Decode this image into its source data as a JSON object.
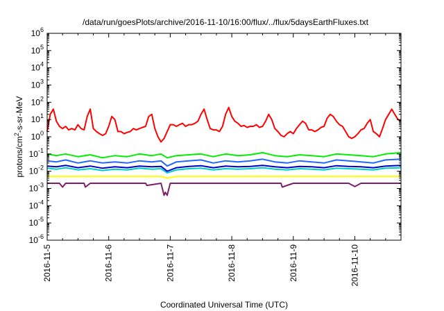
{
  "chart_data": {
    "type": "line",
    "title": "/data/run/goesPlots/archive/2016-11-10/16:00/flux/../flux/5daysEarthFluxes.txt",
    "xlabel": "Coordinated Universal Time (UTC)",
    "ylabel": "protons/cm2-s-sr-MeV",
    "yscale": "log",
    "ylim_exponent": [
      -6,
      6
    ],
    "y_tick_labels": [
      "10-6",
      "10-5",
      "10-4",
      "10-3",
      "10-2",
      "10-1",
      "100",
      "101",
      "102",
      "103",
      "104",
      "105",
      "106"
    ],
    "xlim_days": [
      0,
      5.75
    ],
    "x_ticks": [
      {
        "day": 0,
        "label": "2016-11-5"
      },
      {
        "day": 1,
        "label": "2016-11-6"
      },
      {
        "day": 2,
        "label": "2016-11-7"
      },
      {
        "day": 3,
        "label": "2016-11-8"
      },
      {
        "day": 4,
        "label": "2016-11-9"
      },
      {
        "day": 5,
        "label": "2016-11-10"
      }
    ],
    "grid": false,
    "legend": "none",
    "series": [
      {
        "color": "#ff0000",
        "x": [
          0,
          0.05,
          0.1,
          0.15,
          0.2,
          0.25,
          0.3,
          0.35,
          0.4,
          0.45,
          0.5,
          0.55,
          0.6,
          0.65,
          0.7,
          0.75,
          0.8,
          0.85,
          0.9,
          0.95,
          1.0,
          1.05,
          1.1,
          1.15,
          1.2,
          1.25,
          1.3,
          1.35,
          1.4,
          1.45,
          1.5,
          1.55,
          1.6,
          1.65,
          1.7,
          1.75,
          1.8,
          1.85,
          1.9,
          1.95,
          2.0,
          2.05,
          2.1,
          2.15,
          2.2,
          2.25,
          2.3,
          2.35,
          2.4,
          2.45,
          2.5,
          2.55,
          2.6,
          2.65,
          2.7,
          2.75,
          2.8,
          2.85,
          2.9,
          2.95,
          3.0,
          3.05,
          3.1,
          3.15,
          3.2,
          3.25,
          3.3,
          3.35,
          3.4,
          3.45,
          3.5,
          3.55,
          3.6,
          3.65,
          3.7,
          3.75,
          3.8,
          3.85,
          3.9,
          3.95,
          4.0,
          4.05,
          4.1,
          4.15,
          4.2,
          4.25,
          4.3,
          4.35,
          4.4,
          4.45,
          4.5,
          4.55,
          4.6,
          4.65,
          4.7,
          4.75,
          4.8,
          4.85,
          4.9,
          4.95,
          5.0,
          5.05,
          5.1,
          5.15,
          5.2,
          5.25,
          5.3,
          5.35,
          5.4,
          5.45,
          5.5,
          5.55,
          5.6,
          5.65,
          5.7,
          5.75
        ],
        "values": [
          2,
          20,
          40,
          8,
          4,
          3,
          4,
          2.5,
          3,
          2.5,
          5,
          3,
          2.5,
          15,
          40,
          3,
          2,
          1.5,
          1.2,
          1.5,
          4,
          15,
          10,
          2,
          2,
          1.5,
          1.8,
          2,
          3,
          2.5,
          3,
          3.5,
          4,
          15,
          20,
          3,
          1,
          0.5,
          0.8,
          2,
          5,
          5,
          4,
          5,
          6,
          4,
          5,
          5,
          6,
          8,
          20,
          40,
          10,
          3,
          2.5,
          2.5,
          2,
          4,
          20,
          50,
          15,
          8,
          6,
          4,
          4.5,
          3.5,
          4,
          4,
          5,
          3.5,
          4,
          8,
          20,
          10,
          3,
          2,
          1.2,
          1,
          1.5,
          2,
          1.5,
          3,
          5,
          8,
          6,
          2.5,
          2.5,
          2,
          2.5,
          3.5,
          4,
          12,
          20,
          15,
          8,
          5,
          4,
          2,
          1,
          0.8,
          1,
          1.5,
          2.5,
          3,
          6,
          10,
          2,
          1.5,
          1,
          3,
          10,
          20,
          40,
          20,
          10,
          8
        ]
      },
      {
        "color": "#00ee00",
        "x": [
          0,
          0.15,
          0.3,
          0.5,
          0.7,
          0.9,
          1.1,
          1.3,
          1.5,
          1.7,
          1.85,
          1.95,
          2.1,
          2.3,
          2.5,
          2.7,
          2.9,
          3.1,
          3.3,
          3.5,
          3.7,
          3.9,
          4.1,
          4.3,
          4.5,
          4.7,
          4.9,
          5.1,
          5.3,
          5.5,
          5.75
        ],
        "values": [
          0.1,
          0.08,
          0.1,
          0.07,
          0.09,
          0.06,
          0.08,
          0.07,
          0.1,
          0.08,
          0.1,
          0.06,
          0.08,
          0.09,
          0.1,
          0.07,
          0.1,
          0.08,
          0.09,
          0.12,
          0.08,
          0.07,
          0.09,
          0.08,
          0.07,
          0.1,
          0.09,
          0.08,
          0.07,
          0.1,
          0.12
        ]
      },
      {
        "color": "#2266ff",
        "x": [
          0,
          0.15,
          0.3,
          0.5,
          0.7,
          0.9,
          1.1,
          1.3,
          1.5,
          1.7,
          1.85,
          1.95,
          2.1,
          2.3,
          2.5,
          2.7,
          2.9,
          3.1,
          3.3,
          3.5,
          3.7,
          3.9,
          4.1,
          4.3,
          4.5,
          4.7,
          4.9,
          5.1,
          5.3,
          5.5,
          5.75
        ],
        "values": [
          0.04,
          0.035,
          0.045,
          0.03,
          0.04,
          0.03,
          0.035,
          0.03,
          0.04,
          0.035,
          0.04,
          0.02,
          0.035,
          0.04,
          0.045,
          0.03,
          0.04,
          0.035,
          0.04,
          0.05,
          0.035,
          0.03,
          0.04,
          0.035,
          0.03,
          0.045,
          0.04,
          0.035,
          0.03,
          0.045,
          0.05
        ]
      },
      {
        "color": "#00cccc",
        "x": [
          0,
          0.15,
          0.3,
          0.5,
          0.7,
          0.9,
          1.1,
          1.3,
          1.5,
          1.7,
          1.85,
          1.95,
          2.1,
          2.3,
          2.5,
          2.7,
          2.9,
          3.1,
          3.3,
          3.5,
          3.7,
          3.9,
          4.1,
          4.3,
          4.5,
          4.7,
          4.9,
          5.1,
          5.3,
          5.5,
          5.75
        ],
        "values": [
          0.015,
          0.013,
          0.016,
          0.012,
          0.014,
          0.011,
          0.013,
          0.012,
          0.015,
          0.013,
          0.014,
          0.008,
          0.012,
          0.014,
          0.015,
          0.012,
          0.014,
          0.013,
          0.014,
          0.016,
          0.013,
          0.012,
          0.014,
          0.013,
          0.012,
          0.015,
          0.014,
          0.013,
          0.012,
          0.015,
          0.016
        ]
      },
      {
        "color": "#0000cc",
        "x": [
          0,
          0.15,
          0.3,
          0.5,
          0.7,
          0.9,
          1.1,
          1.3,
          1.5,
          1.7,
          1.85,
          1.95,
          2.1,
          2.3,
          2.5,
          2.7,
          2.9,
          3.1,
          3.3,
          3.5,
          3.7,
          3.9,
          4.1,
          4.3,
          4.5,
          4.7,
          4.9,
          5.1,
          5.3,
          5.5,
          5.75
        ],
        "values": [
          0.02,
          0.018,
          0.022,
          0.016,
          0.02,
          0.015,
          0.018,
          0.016,
          0.02,
          0.018,
          0.019,
          0.01,
          0.016,
          0.019,
          0.021,
          0.016,
          0.02,
          0.018,
          0.019,
          0.022,
          0.018,
          0.016,
          0.019,
          0.018,
          0.016,
          0.021,
          0.019,
          0.018,
          0.016,
          0.02,
          0.022
        ]
      },
      {
        "color": "#ffff00",
        "x": [
          0,
          0.5,
          1.0,
          1.5,
          1.85,
          1.95,
          2.1,
          2.5,
          3.0,
          3.5,
          4.0,
          4.5,
          5.0,
          5.5,
          5.75
        ],
        "values": [
          0.005,
          0.005,
          0.005,
          0.005,
          0.005,
          0.004,
          0.005,
          0.005,
          0.005,
          0.005,
          0.005,
          0.005,
          0.005,
          0.005,
          0.005
        ]
      },
      {
        "color": "#7b1f6b",
        "x": [
          0,
          0.2,
          0.25,
          0.3,
          0.5,
          0.6,
          0.62,
          0.7,
          1.0,
          1.2,
          1.5,
          1.6,
          1.62,
          1.85,
          1.9,
          1.92,
          1.95,
          2.0,
          2.1,
          2.5,
          3.0,
          3.5,
          3.8,
          3.82,
          4.0,
          4.5,
          4.9,
          5.0,
          5.1,
          5.5,
          5.75
        ],
        "values": [
          0.002,
          0.002,
          0.0012,
          0.002,
          0.002,
          0.002,
          0.0012,
          0.002,
          0.002,
          0.002,
          0.002,
          0.002,
          0.0015,
          0.002,
          0.0004,
          0.0006,
          0.0004,
          0.002,
          0.002,
          0.002,
          0.002,
          0.002,
          0.002,
          0.0012,
          0.002,
          0.002,
          0.002,
          0.0013,
          0.002,
          0.002,
          0.002
        ]
      }
    ]
  }
}
